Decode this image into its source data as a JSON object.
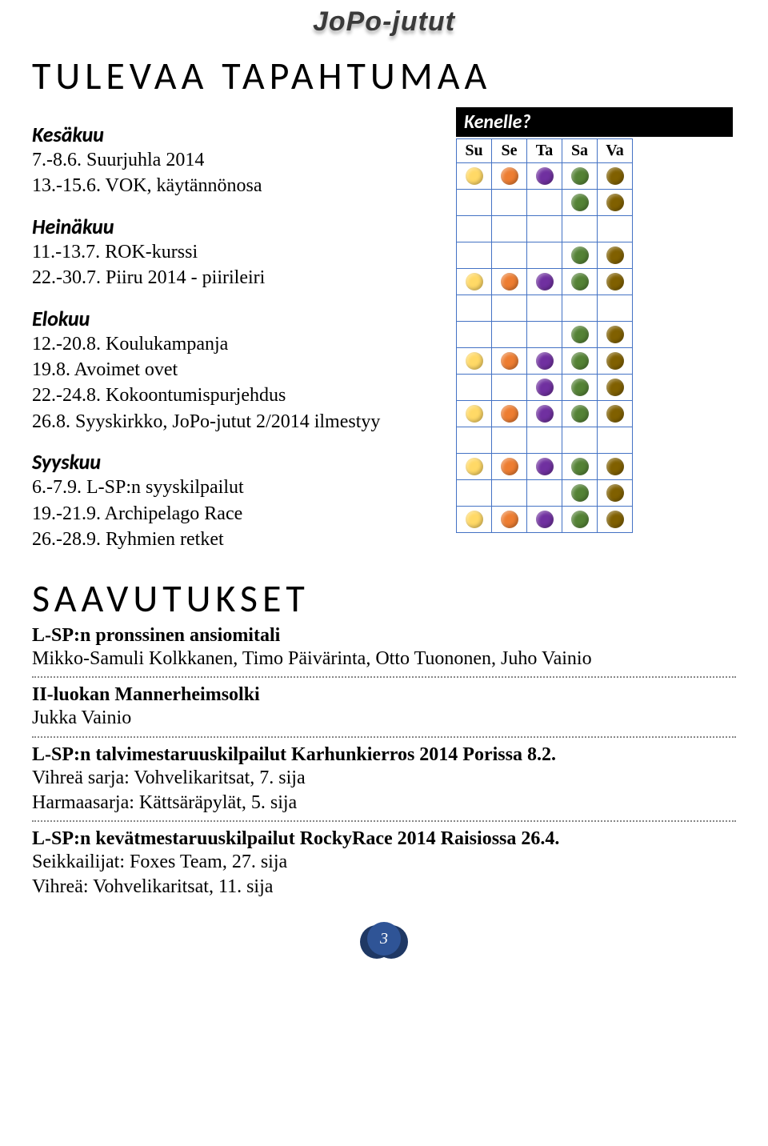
{
  "logo": "JoPo-jutut",
  "title1": "TULEVAA TAPAHTUMAA",
  "title2": "SAAVUTUKSET",
  "kenelle": "Kenelle?",
  "grid": {
    "headers": [
      "Su",
      "Se",
      "Ta",
      "Sa",
      "Va"
    ],
    "colors": {
      "y": "#ffd966",
      "o": "#ed7d31",
      "p": "#7030a0",
      "g": "#548235",
      "b": "#806000"
    },
    "rows": [
      [
        "y",
        "o",
        "p",
        "g",
        "b"
      ],
      [
        "",
        "",
        "",
        "g",
        "b"
      ],
      [
        "",
        "",
        "",
        "",
        ""
      ],
      [
        "",
        "",
        "",
        "g",
        "b"
      ],
      [
        "y",
        "o",
        "p",
        "g",
        "b"
      ],
      [
        "",
        "",
        "",
        "",
        ""
      ],
      [
        "",
        "",
        "",
        "g",
        "b"
      ],
      [
        "y",
        "o",
        "p",
        "g",
        "b"
      ],
      [
        "",
        "",
        "p",
        "g",
        "b"
      ],
      [
        "y",
        "o",
        "p",
        "g",
        "b"
      ],
      [
        "",
        "",
        "",
        "",
        ""
      ],
      [
        "y",
        "o",
        "p",
        "g",
        "b"
      ],
      [
        "",
        "",
        "",
        "g",
        "b"
      ],
      [
        "y",
        "o",
        "p",
        "g",
        "b"
      ]
    ]
  },
  "months": [
    {
      "name": "Kesäkuu",
      "events": [
        "7.-8.6. Suurjuhla 2014",
        "13.-15.6. VOK, käytännönosa"
      ]
    },
    {
      "name": "Heinäkuu",
      "events": [
        "11.-13.7. ROK-kurssi",
        "22.-30.7. Piiru 2014 - piirileiri"
      ]
    },
    {
      "name": "Elokuu",
      "events": [
        "12.-20.8. Koulukampanja",
        "19.8. Avoimet ovet",
        "22.-24.8. Kokoontumispurjehdus",
        "26.8. Syyskirkko, JoPo-jutut 2/2014 ilmestyy"
      ]
    },
    {
      "name": "Syyskuu",
      "events": [
        "6.-7.9. L-SP:n syyskilpailut",
        "19.-21.9. Archipelago Race",
        "26.-28.9. Ryhmien retket"
      ]
    }
  ],
  "achievements": [
    {
      "heading": "L-SP:n pronssinen ansiomitali",
      "body": "Mikko-Samuli Kolkkanen, Timo Päivärinta, Otto Tuononen, Juho Vainio"
    },
    {
      "heading": "II-luokan Mannerheimsolki",
      "body": "Jukka Vainio"
    },
    {
      "heading": "L-SP:n talvimestaruuskilpailut Karhunkierros 2014 Porissa 8.2.",
      "body": "Vihreä sarja: Vohvelikaritsat, 7. sija\nHarmaasarja: Kättsäräpylät, 5. sija"
    },
    {
      "heading": "L-SP:n kevätmestaruuskilpailut RockyRace 2014 Raisiossa 26.4.",
      "body": "Seikkailijat: Foxes Team, 27. sija\nVihreä: Vohvelikaritsat, 11. sija"
    }
  ],
  "pageNumber": "3"
}
